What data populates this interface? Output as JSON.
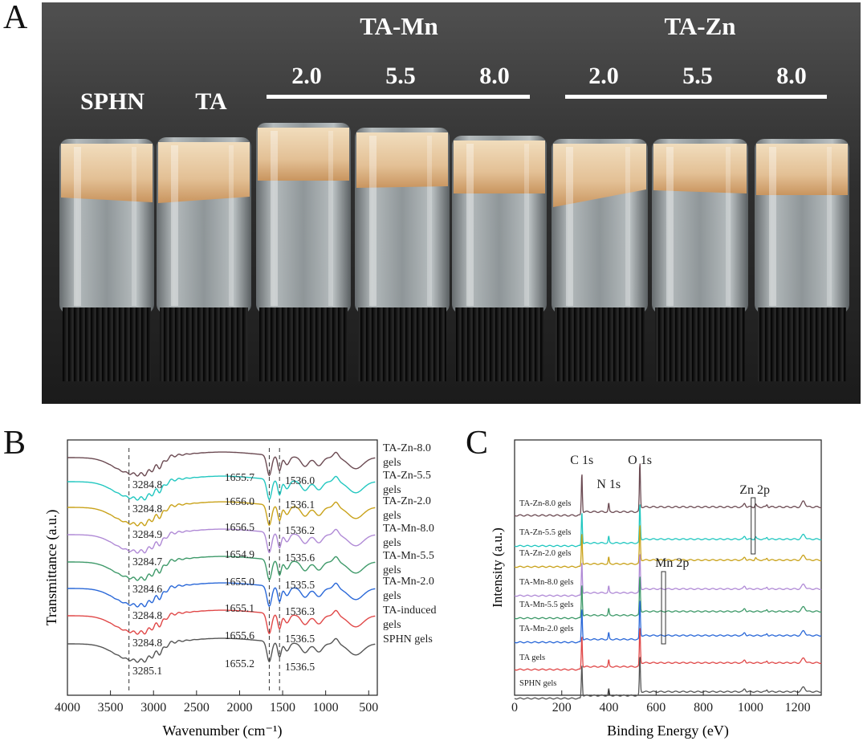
{
  "panels": {
    "a": "A",
    "b": "B",
    "c": "C"
  },
  "photo": {
    "samples": [
      "SPHN",
      "TA"
    ],
    "groups": [
      {
        "title": "TA-Mn",
        "concentrations": [
          "2.0",
          "5.5",
          "8.0"
        ]
      },
      {
        "title": "TA-Zn",
        "concentrations": [
          "2.0",
          "5.5",
          "8.0"
        ]
      }
    ],
    "colors": {
      "background": "#3a3a3a",
      "gel": "#e6c9a0",
      "glass": "#a9b2b6",
      "cap": "#1c1c1c",
      "label": "#ffffff"
    }
  },
  "chart_data": [
    {
      "id": "ftir",
      "type": "line",
      "title": "",
      "xlabel": "Wavenumber (cm⁻¹)",
      "ylabel": "Transmittance (a.u.)",
      "xlim": [
        4000,
        400
      ],
      "xticks": [
        4000,
        3500,
        3000,
        2500,
        2000,
        1500,
        1000,
        500
      ],
      "reference_lines": [
        3285,
        1655,
        1536
      ],
      "series": [
        {
          "name": "TA-Zn-8.0 gels",
          "legend": [
            "TA-Zn-8.0",
            "gels"
          ],
          "color": "#6b4a52",
          "peak_oh": "3284.8",
          "peak_amide1": "1655.7",
          "peak_amide2": "1536.0"
        },
        {
          "name": "TA-Zn-5.5 gels",
          "legend": [
            "TA-Zn-5.5",
            "gels"
          ],
          "color": "#22c7c0",
          "peak_oh": "3284.8",
          "peak_amide1": "1656.0",
          "peak_amide2": "1536.1"
        },
        {
          "name": "TA-Zn-2.0 gels",
          "legend": [
            "TA-Zn-2.0",
            "gels"
          ],
          "color": "#c9a21a",
          "peak_oh": "3284.9",
          "peak_amide1": "1656.5",
          "peak_amide2": "1536.2"
        },
        {
          "name": "TA-Mn-8.0 gels",
          "legend": [
            "TA-Mn-8.0",
            "gels"
          ],
          "color": "#b08ad6",
          "peak_oh": "3284.7",
          "peak_amide1": "1654.9",
          "peak_amide2": "1535.6"
        },
        {
          "name": "TA-Mn-5.5 gels",
          "legend": [
            "TA-Mn-5.5",
            "gels"
          ],
          "color": "#3f9a6a",
          "peak_oh": "3284.6",
          "peak_amide1": "1655.0",
          "peak_amide2": "1535.5"
        },
        {
          "name": "TA-Mn-2.0 gels",
          "legend": [
            "TA-Mn-2.0",
            "gels"
          ],
          "color": "#2a68d8",
          "peak_oh": "3284.8",
          "peak_amide1": "1655.1",
          "peak_amide2": "1536.3"
        },
        {
          "name": "TA-induced gels",
          "legend": [
            "TA-induced",
            "gels"
          ],
          "color": "#e04848",
          "peak_oh": "3284.8",
          "peak_amide1": "1655.6",
          "peak_amide2": "1536.5"
        },
        {
          "name": "SPHN gels",
          "legend": [
            "SPHN gels"
          ],
          "color": "#555555",
          "peak_oh": "3285.1",
          "peak_amide1": "1655.2",
          "peak_amide2": "1536.5"
        }
      ]
    },
    {
      "id": "xps",
      "type": "line",
      "title": "",
      "xlabel": "Binding Energy (eV)",
      "ylabel": "Intensity (a.u.)",
      "xlim": [
        0,
        1300
      ],
      "xticks": [
        0,
        200,
        400,
        600,
        800,
        1000,
        1200
      ],
      "peak_labels": [
        {
          "text": "C 1s",
          "be": 285
        },
        {
          "text": "N 1s",
          "be": 399
        },
        {
          "text": "O 1s",
          "be": 531
        },
        {
          "text": "Zn 2p",
          "be": 1022
        },
        {
          "text": "Mn 2p",
          "be": 641
        }
      ],
      "series": [
        {
          "name": "TA-Zn-8.0 gels",
          "color": "#6b4a52"
        },
        {
          "name": "TA-Zn-5.5 gels",
          "color": "#22c7c0"
        },
        {
          "name": "TA-Zn-2.0 gels",
          "color": "#c9a21a"
        },
        {
          "name": "TA-Mn-8.0 gels",
          "color": "#b08ad6"
        },
        {
          "name": "TA-Mn-5.5 gels",
          "color": "#3f9a6a"
        },
        {
          "name": "TA-Mn-2.0 gels",
          "color": "#2a68d8"
        },
        {
          "name": "TA gels",
          "color": "#e04848"
        },
        {
          "name": "SPHN gels",
          "color": "#555555"
        }
      ]
    }
  ]
}
